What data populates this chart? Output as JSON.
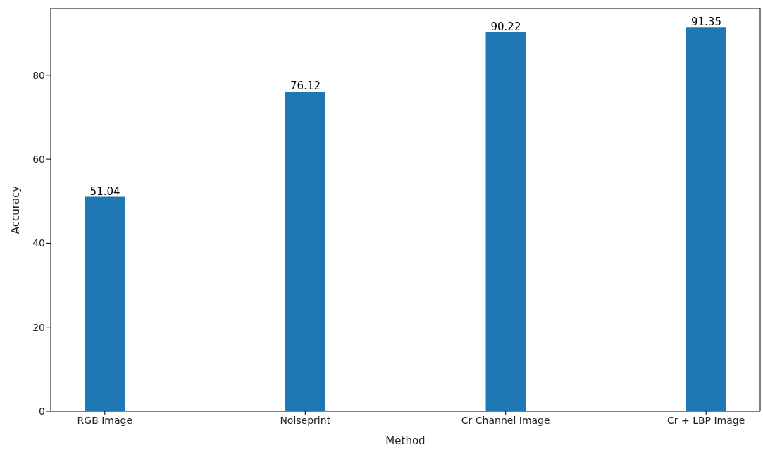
{
  "chart_data": {
    "type": "bar",
    "xlabel": "Method",
    "ylabel": "Accuracy",
    "categories": [
      "RGB Image",
      "Noiseprint",
      "Cr Channel Image",
      "Cr + LBP Image"
    ],
    "values": [
      51.04,
      76.12,
      90.22,
      91.35
    ],
    "color": "#1f77b4",
    "ylim": [
      0,
      95.9
    ],
    "yticks": [
      0,
      20,
      40,
      60,
      80
    ],
    "grid": false,
    "legend": false,
    "data_labels": true
  }
}
